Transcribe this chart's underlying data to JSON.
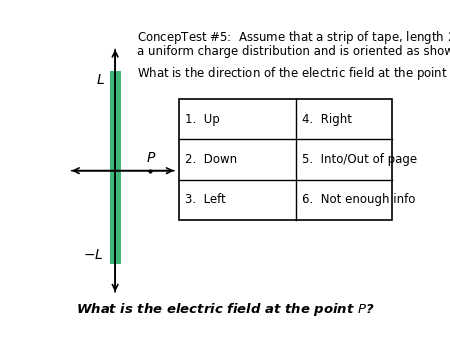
{
  "tape_color": "#3CB878",
  "background_color": "#ffffff",
  "table_options": [
    [
      "1.  Up",
      "4.  Right"
    ],
    [
      "2.  Down",
      "5.  Into/Out of page"
    ],
    [
      "3.  Left",
      "6.  Not enough info"
    ]
  ]
}
